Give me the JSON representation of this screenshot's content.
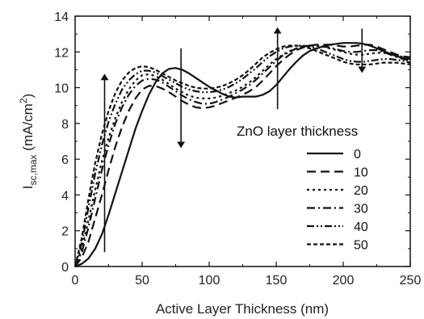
{
  "chart_data": {
    "type": "line",
    "xlabel": "Active Layer Thickness (nm)",
    "ylabel_main": "I",
    "ylabel_sub": "sc,max",
    "ylabel_unit_pre": " (mA/cm",
    "ylabel_unit_sup": "2",
    "ylabel_unit_post": ")",
    "xlim": [
      0,
      250
    ],
    "ylim": [
      0,
      14
    ],
    "xticks": [
      "0",
      "50",
      "100",
      "150",
      "200",
      "250"
    ],
    "yticks": [
      "0",
      "2",
      "4",
      "6",
      "8",
      "10",
      "12",
      "14"
    ],
    "grid": false,
    "legend": {
      "title": "ZnO layer thickness",
      "placement": "center-right"
    },
    "series": [
      {
        "name": "0",
        "dash": "solid",
        "x": [
          0,
          5,
          10,
          15,
          20,
          25,
          30,
          35,
          40,
          45,
          50,
          55,
          60,
          65,
          70,
          75,
          80,
          85,
          90,
          95,
          100,
          105,
          110,
          115,
          120,
          125,
          130,
          135,
          140,
          145,
          150,
          155,
          160,
          165,
          170,
          175,
          180,
          185,
          190,
          195,
          200,
          205,
          210,
          215,
          220,
          225,
          230,
          235,
          240,
          245,
          250
        ],
        "y": [
          0,
          0.15,
          0.45,
          1.0,
          1.8,
          2.9,
          4.1,
          5.3,
          6.5,
          7.7,
          8.7,
          9.6,
          10.3,
          10.8,
          11.05,
          11.1,
          11.0,
          10.8,
          10.55,
          10.3,
          10.05,
          9.85,
          9.65,
          9.5,
          9.45,
          9.5,
          9.5,
          9.5,
          9.6,
          9.8,
          10.15,
          10.6,
          11.05,
          11.45,
          11.8,
          12.05,
          12.2,
          12.3,
          12.4,
          12.45,
          12.5,
          12.5,
          12.5,
          12.45,
          12.35,
          12.2,
          12.05,
          11.9,
          11.75,
          11.65,
          11.6
        ]
      },
      {
        "name": "10",
        "dash": "long-dash",
        "x": [
          0,
          5,
          10,
          15,
          20,
          25,
          30,
          35,
          40,
          45,
          50,
          55,
          60,
          65,
          70,
          75,
          80,
          85,
          90,
          95,
          100,
          105,
          110,
          115,
          120,
          125,
          130,
          135,
          140,
          145,
          150,
          155,
          160,
          165,
          170,
          175,
          180,
          185,
          190,
          195,
          200,
          205,
          210,
          215,
          220,
          225,
          230,
          235,
          240,
          245,
          250
        ],
        "y": [
          0,
          0.5,
          1.4,
          2.7,
          4.0,
          5.4,
          6.7,
          7.8,
          8.7,
          9.4,
          9.9,
          10.1,
          10.1,
          9.95,
          9.75,
          9.5,
          9.25,
          9.05,
          8.9,
          8.85,
          8.9,
          9.0,
          9.15,
          9.3,
          9.45,
          9.6,
          9.8,
          10.05,
          10.4,
          10.8,
          11.2,
          11.55,
          11.85,
          12.1,
          12.25,
          12.35,
          12.4,
          12.4,
          12.4,
          12.35,
          12.3,
          12.3,
          12.35,
          12.4,
          12.4,
          12.3,
          12.15,
          12.0,
          11.85,
          11.75,
          11.7
        ]
      },
      {
        "name": "20",
        "dash": "dot",
        "x": [
          0,
          5,
          10,
          15,
          20,
          25,
          30,
          35,
          40,
          45,
          50,
          55,
          60,
          65,
          70,
          75,
          80,
          85,
          90,
          95,
          100,
          105,
          110,
          115,
          120,
          125,
          130,
          135,
          140,
          145,
          150,
          155,
          160,
          165,
          170,
          175,
          180,
          185,
          190,
          195,
          200,
          205,
          210,
          215,
          220,
          225,
          230,
          235,
          240,
          245,
          250
        ],
        "y": [
          0,
          1.0,
          2.6,
          4.3,
          5.9,
          7.2,
          8.3,
          9.2,
          9.9,
          10.4,
          10.7,
          10.75,
          10.65,
          10.45,
          10.2,
          9.95,
          9.75,
          9.55,
          9.45,
          9.4,
          9.4,
          9.45,
          9.55,
          9.7,
          9.85,
          10.05,
          10.3,
          10.6,
          10.95,
          11.3,
          11.6,
          11.85,
          12.05,
          12.2,
          12.3,
          12.35,
          12.35,
          12.3,
          12.2,
          12.1,
          12.0,
          11.9,
          11.85,
          11.85,
          11.9,
          11.95,
          11.95,
          11.9,
          11.8,
          11.7,
          11.6
        ]
      },
      {
        "name": "30",
        "dash": "dash-dot",
        "x": [
          0,
          5,
          10,
          15,
          20,
          25,
          30,
          35,
          40,
          45,
          50,
          55,
          60,
          65,
          70,
          75,
          80,
          85,
          90,
          95,
          100,
          105,
          110,
          115,
          120,
          125,
          130,
          135,
          140,
          145,
          150,
          155,
          160,
          165,
          170,
          175,
          180,
          185,
          190,
          195,
          200,
          205,
          210,
          215,
          220,
          225,
          230,
          235,
          240,
          245,
          250
        ],
        "y": [
          0,
          0.8,
          2.2,
          3.8,
          5.4,
          6.8,
          8.0,
          8.9,
          9.6,
          10.1,
          10.4,
          10.5,
          10.45,
          10.3,
          10.05,
          9.8,
          9.55,
          9.35,
          9.2,
          9.1,
          9.1,
          9.2,
          9.35,
          9.5,
          9.7,
          9.9,
          10.15,
          10.45,
          10.8,
          11.15,
          11.5,
          11.8,
          12.0,
          12.2,
          12.3,
          12.35,
          12.35,
          12.3,
          12.25,
          12.15,
          12.05,
          12.0,
          12.0,
          12.05,
          12.1,
          12.1,
          12.0,
          11.85,
          11.7,
          11.6,
          11.5
        ]
      },
      {
        "name": "40",
        "dash": "dash-dot-dot",
        "x": [
          0,
          5,
          10,
          15,
          20,
          25,
          30,
          35,
          40,
          45,
          50,
          55,
          60,
          65,
          70,
          75,
          80,
          85,
          90,
          95,
          100,
          105,
          110,
          115,
          120,
          125,
          130,
          135,
          140,
          145,
          150,
          155,
          160,
          165,
          170,
          175,
          180,
          185,
          190,
          195,
          200,
          205,
          210,
          215,
          220,
          225,
          230,
          235,
          240,
          245,
          250
        ],
        "y": [
          0,
          1.3,
          3.3,
          5.2,
          6.8,
          8.1,
          9.1,
          9.9,
          10.4,
          10.75,
          10.95,
          10.95,
          10.85,
          10.65,
          10.45,
          10.25,
          10.05,
          9.9,
          9.8,
          9.75,
          9.75,
          9.8,
          9.9,
          10.05,
          10.25,
          10.5,
          10.8,
          11.1,
          11.45,
          11.75,
          12.0,
          12.2,
          12.3,
          12.35,
          12.35,
          12.3,
          12.2,
          12.05,
          11.9,
          11.75,
          11.6,
          11.5,
          11.45,
          11.45,
          11.5,
          11.55,
          11.6,
          11.6,
          11.55,
          11.5,
          11.4
        ]
      },
      {
        "name": "50",
        "dash": "short-dash",
        "x": [
          0,
          5,
          10,
          15,
          20,
          25,
          30,
          35,
          40,
          45,
          50,
          55,
          60,
          65,
          70,
          75,
          80,
          85,
          90,
          95,
          100,
          105,
          110,
          115,
          120,
          125,
          130,
          135,
          140,
          145,
          150,
          155,
          160,
          165,
          170,
          175,
          180,
          185,
          190,
          195,
          200,
          205,
          210,
          215,
          220,
          225,
          230,
          235,
          240,
          245,
          250
        ],
        "y": [
          0,
          1.6,
          3.8,
          5.8,
          7.4,
          8.7,
          9.7,
          10.4,
          10.85,
          11.1,
          11.2,
          11.15,
          11.0,
          10.8,
          10.6,
          10.4,
          10.25,
          10.1,
          10.0,
          9.95,
          9.95,
          10.0,
          10.1,
          10.25,
          10.45,
          10.7,
          11.0,
          11.35,
          11.7,
          11.95,
          12.15,
          12.3,
          12.35,
          12.35,
          12.3,
          12.2,
          12.05,
          11.9,
          11.75,
          11.6,
          11.45,
          11.35,
          11.3,
          11.3,
          11.3,
          11.35,
          11.4,
          11.4,
          11.4,
          11.35,
          11.3
        ]
      }
    ],
    "annotations": [
      {
        "kind": "arrow",
        "direction": "up",
        "x": 22,
        "y_from": 0.8,
        "y_to": 10.6
      },
      {
        "kind": "arrow",
        "direction": "down",
        "x": 79,
        "y_from": 12.2,
        "y_to": 6.8
      },
      {
        "kind": "arrow",
        "direction": "up",
        "x": 151,
        "y_from": 8.8,
        "y_to": 13.2
      },
      {
        "kind": "arrow",
        "direction": "down",
        "x": 214,
        "y_from": 13.3,
        "y_to": 11.0
      }
    ]
  }
}
